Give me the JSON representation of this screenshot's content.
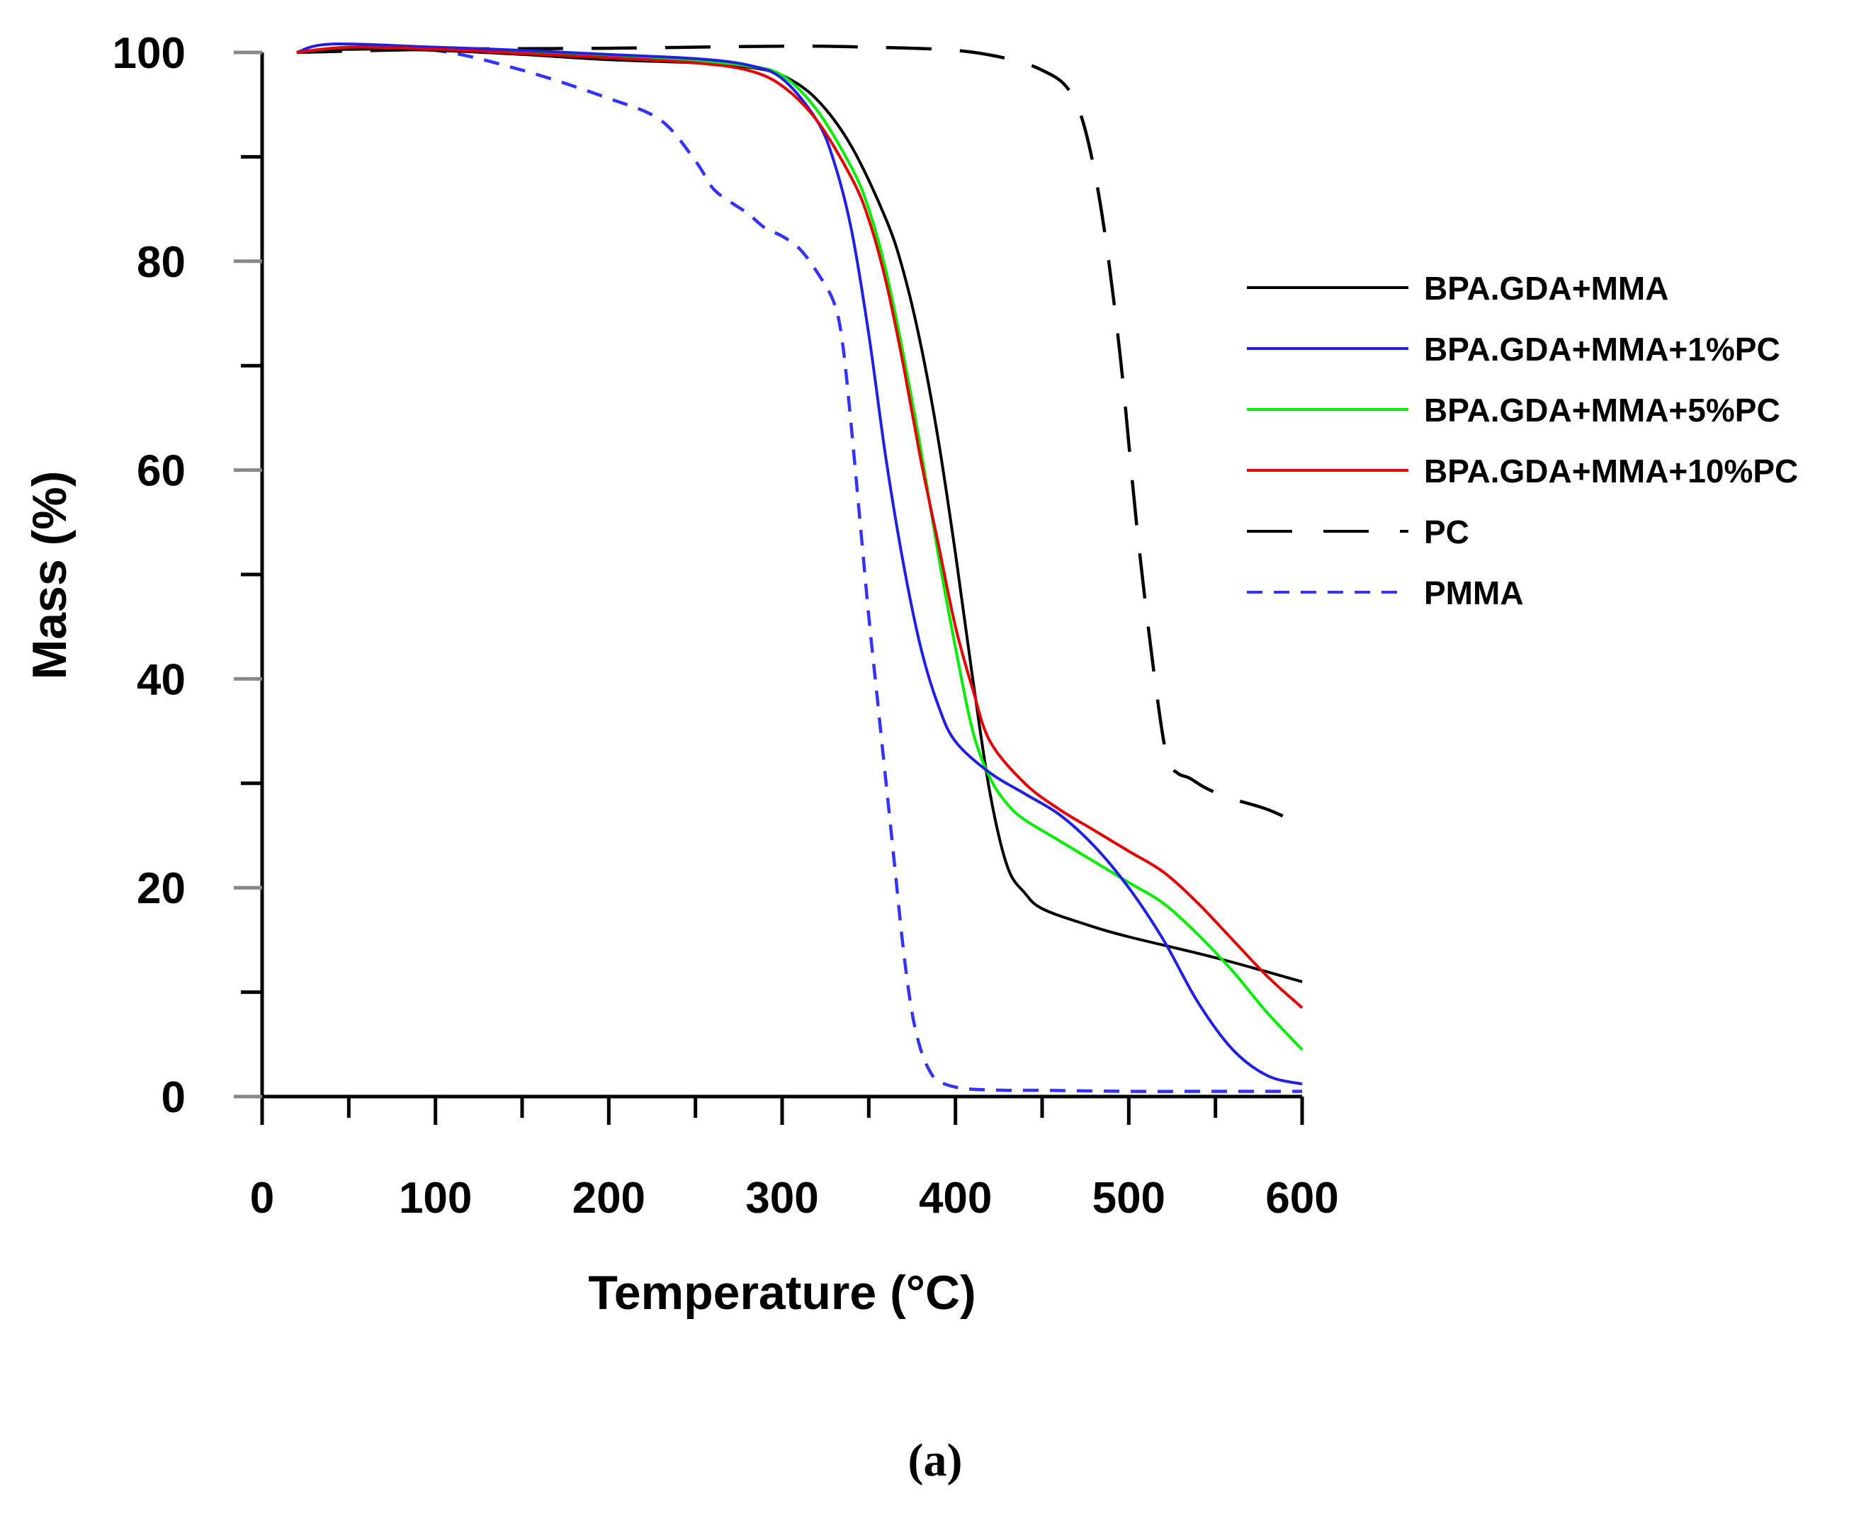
{
  "chart_data": {
    "type": "line",
    "title": "",
    "xlabel": "Temperature (°C)",
    "ylabel": "Mass (%)",
    "xlim": [
      0,
      600
    ],
    "ylim": [
      0,
      100
    ],
    "xticks": [
      0,
      100,
      200,
      300,
      400,
      500,
      600
    ],
    "yticks": [
      0,
      20,
      40,
      60,
      80,
      100
    ],
    "grid": false,
    "legend_position": "right",
    "panel_label": "(a)",
    "series": [
      {
        "name": "BPA.GDA+MMA",
        "color": "#000000",
        "dash": "solid",
        "x": [
          20,
          50,
          100,
          150,
          200,
          250,
          280,
          300,
          320,
          340,
          360,
          370,
          380,
          390,
          400,
          410,
          420,
          430,
          440,
          450,
          475,
          500,
          550,
          600
        ],
        "y": [
          100,
          100.3,
          100.2,
          99.8,
          99.3,
          99,
          98.6,
          97.8,
          95.5,
          91,
          84,
          79,
          72,
          63,
          52,
          40,
          29,
          22,
          19.5,
          18,
          16.5,
          15.3,
          13.3,
          11
        ]
      },
      {
        "name": "BPA.GDA+MMA+1%PC",
        "color": "#1f1fe6",
        "dash": "solid",
        "x": [
          20,
          40,
          100,
          150,
          200,
          250,
          280,
          300,
          320,
          330,
          340,
          350,
          360,
          370,
          380,
          390,
          400,
          420,
          440,
          460,
          480,
          500,
          520,
          540,
          560,
          580,
          600
        ],
        "y": [
          100,
          100.8,
          100.5,
          100.2,
          99.8,
          99.4,
          98.8,
          97.5,
          93.5,
          89.5,
          83,
          73,
          61,
          51,
          43,
          37.5,
          34,
          31,
          29,
          27,
          24,
          20,
          15,
          9,
          4.5,
          2,
          1.2
        ]
      },
      {
        "name": "BPA.GDA+MMA+5%PC",
        "color": "#00ee00",
        "dash": "solid",
        "x": [
          20,
          50,
          100,
          150,
          200,
          250,
          280,
          300,
          320,
          340,
          350,
          360,
          370,
          380,
          390,
          400,
          410,
          420,
          430,
          440,
          460,
          480,
          500,
          520,
          540,
          560,
          580,
          600
        ],
        "y": [
          100,
          100.5,
          100.4,
          100,
          99.6,
          99.2,
          98.7,
          97.8,
          94.5,
          89,
          85,
          79,
          71,
          62,
          52,
          43,
          35,
          30.5,
          28,
          26.5,
          24.5,
          22.5,
          20.5,
          18.5,
          15.5,
          12,
          8,
          4.5
        ]
      },
      {
        "name": "BPA.GDA+MMA+10%PC",
        "color": "#e60000",
        "dash": "solid",
        "x": [
          20,
          50,
          100,
          150,
          200,
          250,
          280,
          300,
          320,
          340,
          350,
          360,
          370,
          380,
          390,
          400,
          410,
          420,
          440,
          460,
          480,
          500,
          520,
          540,
          560,
          580,
          600
        ],
        "y": [
          100,
          100.5,
          100.3,
          99.9,
          99.5,
          99,
          98.3,
          96.8,
          93.5,
          88,
          84,
          78,
          70,
          61,
          53,
          45,
          39,
          34,
          30,
          27.5,
          25.5,
          23.5,
          21.5,
          18.5,
          15,
          11.5,
          8.5
        ]
      },
      {
        "name": "PC",
        "color": "#000000",
        "dash": "long-dash",
        "x": [
          20,
          100,
          200,
          300,
          350,
          400,
          430,
          450,
          465,
          475,
          485,
          495,
          505,
          515,
          522,
          528,
          535,
          545,
          560,
          580,
          600
        ],
        "y": [
          100,
          100.3,
          100.4,
          100.6,
          100.5,
          100.2,
          99.4,
          98.3,
          96.5,
          92.5,
          84,
          71,
          54,
          40,
          32.5,
          31,
          30.5,
          29.5,
          28.5,
          27.5,
          26
        ]
      },
      {
        "name": "PMMA",
        "color": "#3333ff",
        "dash": "short-dash",
        "x": [
          20,
          50,
          100,
          150,
          200,
          230,
          250,
          260,
          270,
          280,
          290,
          300,
          310,
          320,
          330,
          335,
          340,
          345,
          350,
          355,
          360,
          365,
          370,
          375,
          380,
          385,
          390,
          400,
          410,
          430,
          450,
          500,
          550,
          600
        ],
        "y": [
          100,
          100.3,
          100.2,
          98.3,
          95.6,
          93.5,
          89.6,
          87,
          85.7,
          84.6,
          83.2,
          82.4,
          81.2,
          79,
          76,
          72,
          64,
          55,
          46,
          38,
          30,
          22,
          14,
          8,
          4.5,
          2.5,
          1.5,
          0.9,
          0.7,
          0.6,
          0.6,
          0.5,
          0.5,
          0.5
        ]
      }
    ]
  }
}
